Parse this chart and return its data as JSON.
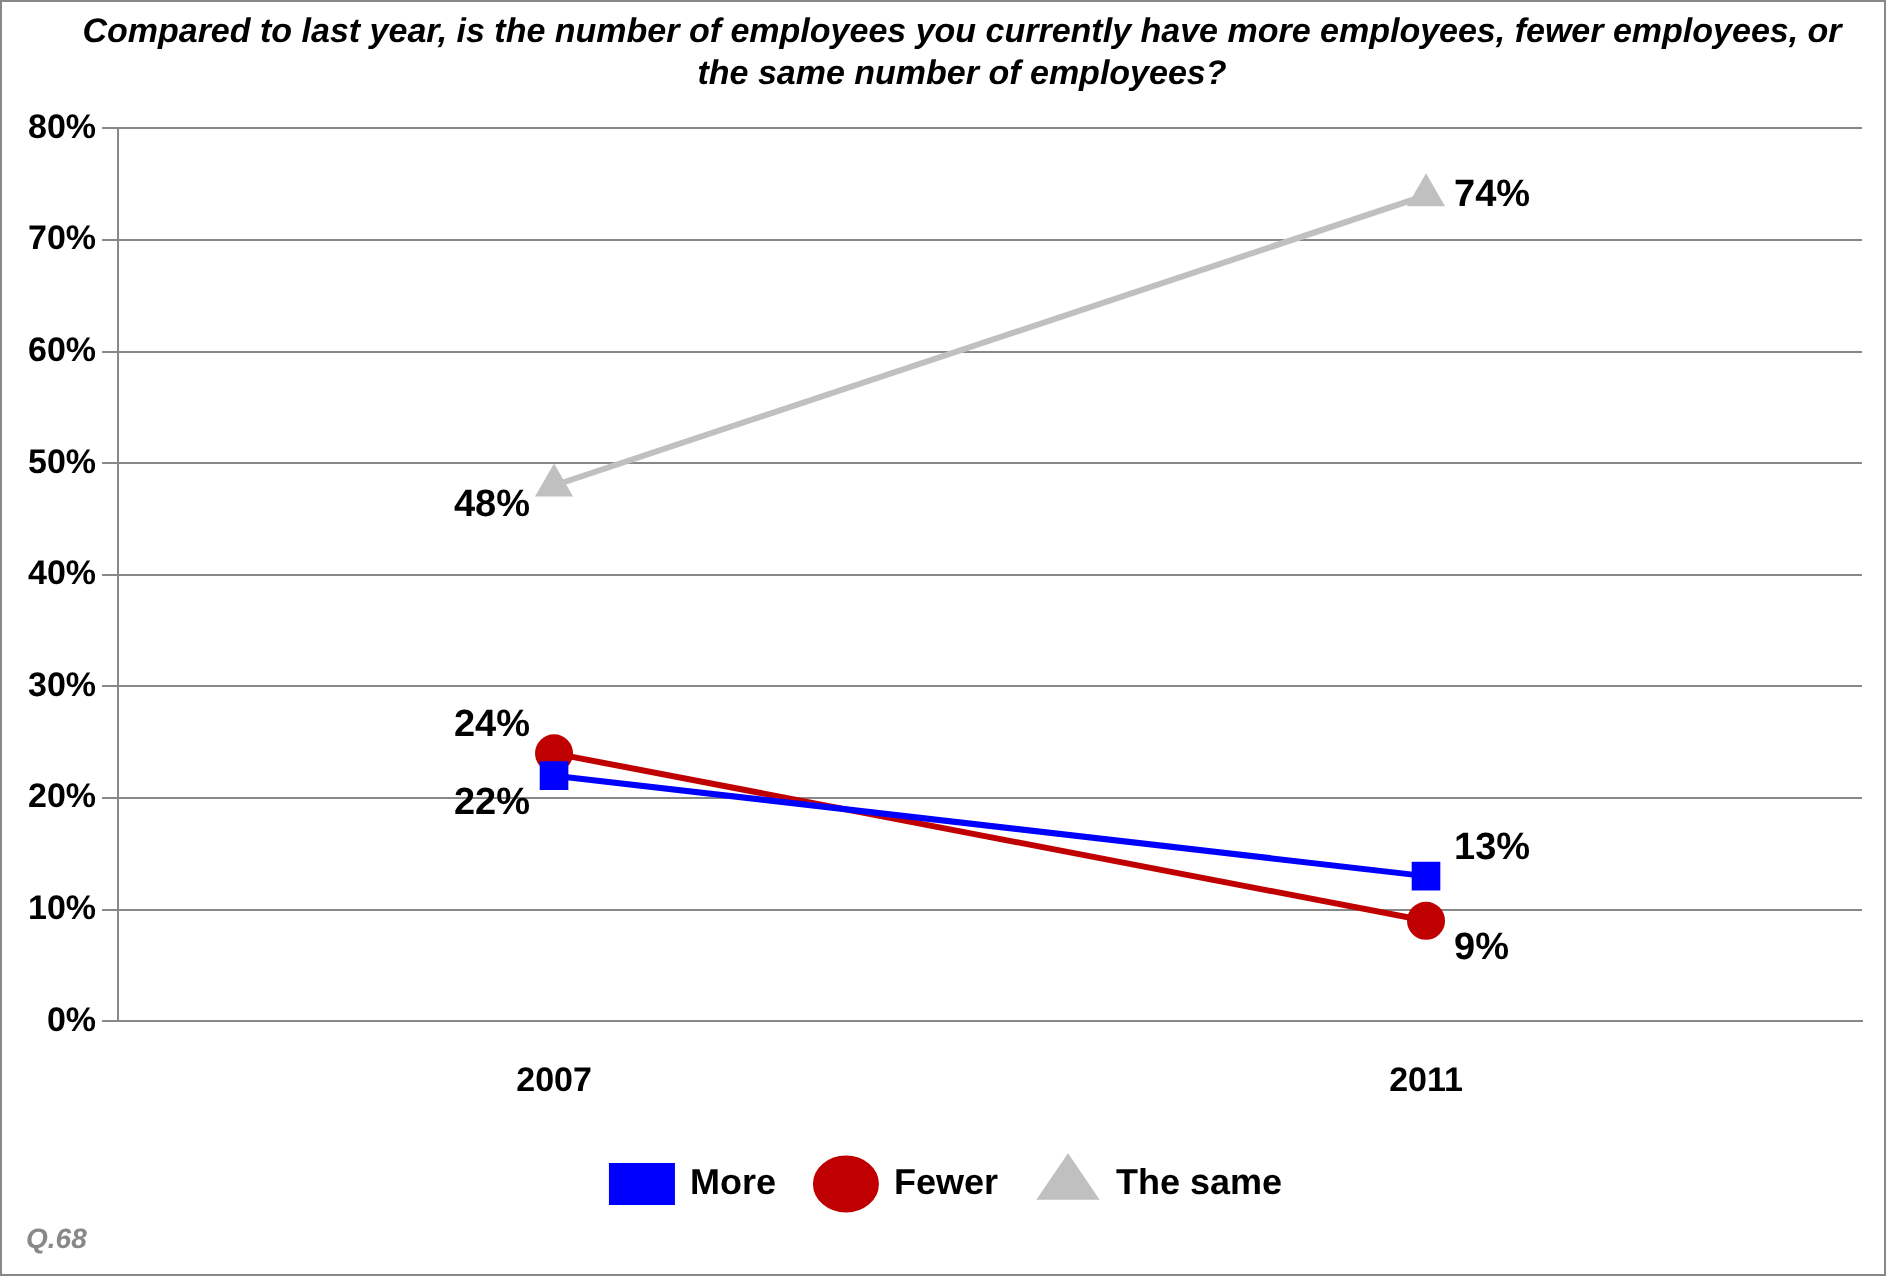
{
  "chart_data": {
    "type": "line",
    "title": "Compared to last year, is the number of employees you currently have more employees, fewer employees, or the same number of employees?",
    "categories": [
      "2007",
      "2011"
    ],
    "series": [
      {
        "name": "More",
        "color": "#0000ff",
        "values": [
          22,
          13
        ],
        "marker": "square",
        "value_labels": [
          "22%",
          "13%"
        ]
      },
      {
        "name": "Fewer",
        "color": "#c00000",
        "values": [
          24,
          9
        ],
        "marker": "circle",
        "value_labels": [
          "24%",
          "9%"
        ]
      },
      {
        "name": "The same",
        "color": "#c0c0c0",
        "values": [
          48,
          74
        ],
        "marker": "triangle",
        "value_labels": [
          "48%",
          "74%"
        ]
      }
    ],
    "ylim": [
      0,
      80
    ],
    "yticks": [
      {
        "value": 0,
        "label": "0%"
      },
      {
        "value": 10,
        "label": "10%"
      },
      {
        "value": 20,
        "label": "20%"
      },
      {
        "value": 30,
        "label": "30%"
      },
      {
        "value": 40,
        "label": "40%"
      },
      {
        "value": 50,
        "label": "50%"
      },
      {
        "value": 60,
        "label": "60%"
      },
      {
        "value": 70,
        "label": "70%"
      },
      {
        "value": 80,
        "label": "80%"
      }
    ],
    "grid": "y",
    "legend": "bottom",
    "line_style": "solid",
    "annotations": [
      "Q.68"
    ]
  }
}
